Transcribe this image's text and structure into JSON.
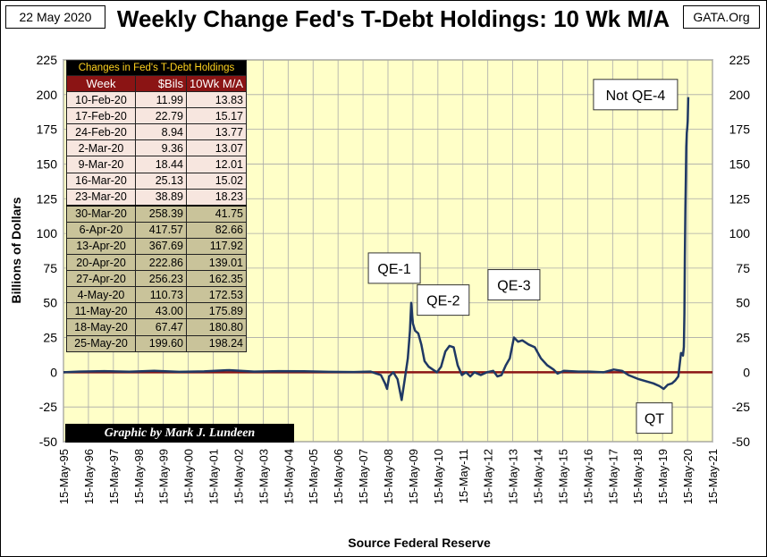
{
  "header": {
    "date": "22 May 2020",
    "title": "Weekly Change Fed's T-Debt Holdings: 10 Wk M/A",
    "source": "GATA.Org"
  },
  "colors": {
    "plot_background": "#ffffc8",
    "series_line": "#1f3864",
    "zero_line": "#8b1414",
    "table_pink": "#f7e6df",
    "table_olive": "#c9c39a",
    "table_header": "#8b1414",
    "caption_text": "#ffd21f"
  },
  "table": {
    "caption": "Changes in Fed's T-Debt Holdings",
    "headers": [
      "Week",
      "$Bils",
      "10Wk M/A"
    ],
    "rows": [
      [
        "10-Feb-20",
        "11.99",
        "13.83"
      ],
      [
        "17-Feb-20",
        "22.79",
        "15.17"
      ],
      [
        "24-Feb-20",
        "8.94",
        "13.77"
      ],
      [
        "2-Mar-20",
        "9.36",
        "13.07"
      ],
      [
        "9-Mar-20",
        "18.44",
        "12.01"
      ],
      [
        "16-Mar-20",
        "25.13",
        "15.02"
      ],
      [
        "23-Mar-20",
        "38.89",
        "18.23"
      ],
      [
        "30-Mar-20",
        "258.39",
        "41.75"
      ],
      [
        "6-Apr-20",
        "417.57",
        "82.66"
      ],
      [
        "13-Apr-20",
        "367.69",
        "117.92"
      ],
      [
        "20-Apr-20",
        "222.86",
        "139.01"
      ],
      [
        "27-Apr-20",
        "256.23",
        "162.35"
      ],
      [
        "4-May-20",
        "110.73",
        "172.53"
      ],
      [
        "11-May-20",
        "43.00",
        "175.89"
      ],
      [
        "18-May-20",
        "67.47",
        "180.80"
      ],
      [
        "25-May-20",
        "199.60",
        "198.24"
      ]
    ],
    "highlight_from_row": 7
  },
  "credit": "Graphic by Mark J. Lundeen",
  "chart_data": {
    "type": "line",
    "title": "Weekly Change Fed's T-Debt Holdings: 10 Wk M/A",
    "xlabel": "Source Federal Reserve",
    "ylabel": "Billions  of  Dollars",
    "ylim": [
      -50,
      225
    ],
    "y_ticks": [
      -50,
      -25,
      0,
      25,
      50,
      75,
      100,
      125,
      150,
      175,
      200,
      225
    ],
    "xlim": [
      "1995-05-15",
      "2021-05-15"
    ],
    "x_tick_labels": [
      "15-May-95",
      "15-May-96",
      "15-May-97",
      "15-May-98",
      "15-May-99",
      "15-May-00",
      "15-May-01",
      "15-May-02",
      "15-May-03",
      "15-May-04",
      "15-May-05",
      "15-May-06",
      "15-May-07",
      "15-May-08",
      "15-May-09",
      "15-May-10",
      "15-May-11",
      "15-May-12",
      "15-May-13",
      "15-May-14",
      "15-May-15",
      "15-May-16",
      "15-May-17",
      "15-May-18",
      "15-May-19",
      "15-May-20",
      "15-May-21"
    ],
    "grid": true,
    "legend": "none",
    "series": [
      {
        "x": [
          "1995-05-15",
          "1996-01-01",
          "1997-01-01",
          "1998-01-01",
          "1999-01-01",
          "2000-01-01",
          "2001-01-01",
          "2002-01-01",
          "2003-01-01",
          "2004-01-01",
          "2005-01-01",
          "2006-01-01",
          "2007-01-01",
          "2007-09-01",
          "2007-12-01",
          "2008-02-01",
          "2008-04-01",
          "2008-05-01",
          "2008-06-01",
          "2008-08-01",
          "2008-10-01",
          "2008-12-01",
          "2009-01-15",
          "2009-03-01",
          "2009-04-01",
          "2009-04-20",
          "2009-05-15",
          "2009-06-15",
          "2009-08-01",
          "2009-09-15",
          "2009-11-01",
          "2010-01-01",
          "2010-03-01",
          "2010-05-01",
          "2010-07-01",
          "2010-09-01",
          "2010-11-01",
          "2011-01-01",
          "2011-03-01",
          "2011-05-01",
          "2011-07-01",
          "2011-09-01",
          "2011-11-01",
          "2012-02-01",
          "2012-05-01",
          "2012-08-01",
          "2012-10-01",
          "2012-12-01",
          "2013-02-01",
          "2013-04-01",
          "2013-06-01",
          "2013-08-01",
          "2013-10-01",
          "2014-01-01",
          "2014-04-01",
          "2014-07-01",
          "2014-10-01",
          "2015-01-01",
          "2015-03-01",
          "2015-06-01",
          "2016-01-01",
          "2016-06-01",
          "2017-01-01",
          "2017-06-01",
          "2017-10-01",
          "2018-01-01",
          "2018-06-01",
          "2019-01-01",
          "2019-04-01",
          "2019-06-01",
          "2019-08-01",
          "2019-10-01",
          "2019-11-15",
          "2020-01-01",
          "2020-02-10",
          "2020-02-24",
          "2020-03-09",
          "2020-03-23",
          "2020-03-30",
          "2020-04-06",
          "2020-04-13",
          "2020-04-20",
          "2020-04-27",
          "2020-05-04",
          "2020-05-11",
          "2020-05-18",
          "2020-05-25"
        ],
        "values": [
          0,
          0.5,
          0.8,
          0.4,
          1,
          0.3,
          0.6,
          1.5,
          0.5,
          0.8,
          0.7,
          0.3,
          0.2,
          0.5,
          -1,
          -2,
          -8,
          -12,
          -3,
          0,
          -5,
          -20,
          -5,
          10,
          30,
          50,
          35,
          30,
          28,
          20,
          8,
          4,
          2,
          0,
          4,
          15,
          19,
          18,
          5,
          -2,
          0,
          -3,
          0,
          -2,
          0,
          1,
          -3,
          -2,
          5,
          10,
          25,
          22,
          23,
          20,
          18,
          10,
          5,
          2,
          -1,
          1,
          0.5,
          0.5,
          0,
          2,
          1,
          -2,
          -5,
          -8,
          -10,
          -12,
          -9,
          -8,
          -6,
          -3,
          13.83,
          13.77,
          12.01,
          18.23,
          41.75,
          82.66,
          117.92,
          139.01,
          162.35,
          172.53,
          175.89,
          180.8,
          198.24
        ]
      }
    ],
    "annotations": [
      {
        "text": "QE-1",
        "x": "2008-08-15",
        "y": 75
      },
      {
        "text": "QE-2",
        "x": "2010-08-01",
        "y": 52
      },
      {
        "text": "QE-3",
        "x": "2013-06-01",
        "y": 63
      },
      {
        "text": "Not QE-4",
        "x": "2018-04-15",
        "y": 200
      },
      {
        "text": "QT",
        "x": "2019-01-15",
        "y": -33
      }
    ]
  }
}
